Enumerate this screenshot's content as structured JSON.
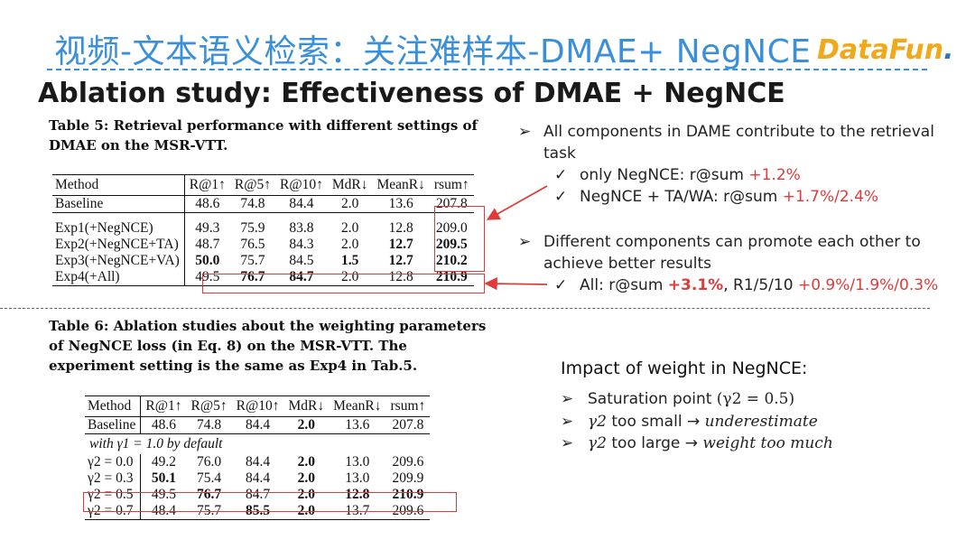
{
  "header": {
    "title": "视频-文本语义检索：关注难样本-DMAE+ NegNCE",
    "logo_main": "DataFun",
    "logo_dot": "."
  },
  "subtitle": "Ablation study: Effectiveness of DMAE + NegNCE",
  "table5": {
    "caption": "Table 5: Retrieval performance with different settings of DMAE on the MSR-VTT.",
    "columns": [
      "Method",
      "R@1↑",
      "R@5↑",
      "R@10↑",
      "MdR↓",
      "MeanR↓",
      "rsum↑"
    ],
    "rows": [
      [
        "Baseline",
        "48.6",
        "74.8",
        "84.4",
        "2.0",
        "13.6",
        "207.8"
      ],
      [
        "Exp1(+NegNCE)",
        "49.3",
        "75.9",
        "83.8",
        "2.0",
        "12.8",
        "209.0"
      ],
      [
        "Exp2(+NegNCE+TA)",
        "48.7",
        "76.5",
        "84.3",
        "2.0",
        "12.7",
        "209.5"
      ],
      [
        "Exp3(+NegNCE+VA)",
        "50.0",
        "75.7",
        "84.5",
        "1.5",
        "12.7",
        "210.2"
      ],
      [
        "Exp4(+All)",
        "49.5",
        "76.7",
        "84.7",
        "2.0",
        "12.8",
        "210.9"
      ]
    ]
  },
  "table6": {
    "caption": "Table 6: Ablation studies about the weighting parameters of NegNCE loss (in Eq. 8) on the MSR-VTT. The experiment setting is the same as Exp4 in Tab.5.",
    "columns": [
      "Method",
      "R@1↑",
      "R@5↑",
      "R@10↑",
      "MdR↓",
      "MeanR↓",
      "rsum↑"
    ],
    "baseline": [
      "Baseline",
      "48.6",
      "74.8",
      "84.4",
      "2.0",
      "13.6",
      "207.8"
    ],
    "note": "with γ1 = 1.0 by default",
    "rows": [
      [
        "γ2 = 0.0",
        "49.2",
        "76.0",
        "84.4",
        "2.0",
        "13.0",
        "209.6"
      ],
      [
        "γ2 = 0.3",
        "50.1",
        "75.4",
        "84.4",
        "2.0",
        "13.0",
        "209.9"
      ],
      [
        "γ2 = 0.5",
        "49.5",
        "76.7",
        "84.7",
        "2.0",
        "12.8",
        "210.9"
      ],
      [
        "γ2 = 0.7",
        "48.4",
        "75.7",
        "85.5",
        "2.0",
        "13.7",
        "209.6"
      ]
    ]
  },
  "right": {
    "point1": "All components in DAME contribute to the retrieval task",
    "sub1_text": "only NegNCE: r@sum ",
    "sub1_val": "+1.2%",
    "sub2_text": "NegNCE + TA/WA: r@sum ",
    "sub2_val": "+1.7%/2.4%",
    "point2": "Different components can promote each other to achieve better results",
    "sub3_text": "All: r@sum ",
    "sub3_val": "+3.1%",
    "sub3_mid": ", R1/5/10 ",
    "sub3_val2": "+0.9%/1.9%/0.3%"
  },
  "impact": {
    "title": "Impact of weight in NegNCE:",
    "item1_text": "Saturation point ",
    "item1_math": "(γ2 = 0.5)",
    "item2_sym": "γ2",
    "item2_text": " too small  → ",
    "item2_em": "underestimate",
    "item3_sym": "γ2",
    "item3_text": " too large  → ",
    "item3_em": "weight too much"
  },
  "colors": {
    "title_blue": "#3a8fd9",
    "highlight_red": "#e03a3a",
    "logo_orange": "#f0a91a",
    "logo_blue": "#2d74c4"
  }
}
